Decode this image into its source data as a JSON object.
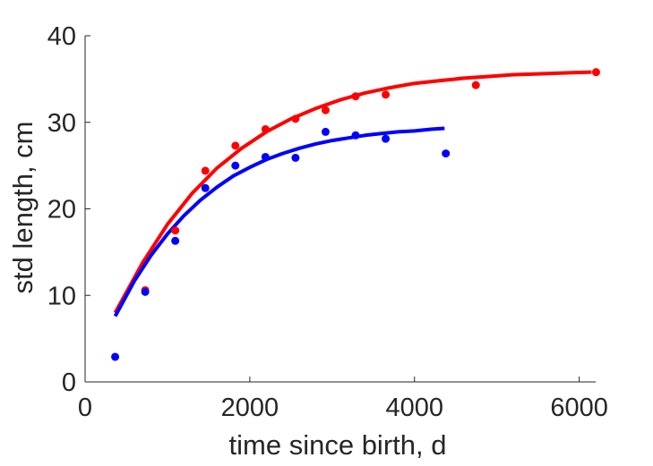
{
  "chart_data": {
    "type": "scatter",
    "title": "",
    "xlabel": "time since birth, d",
    "ylabel": "std length, cm",
    "xlim": [
      0,
      6200
    ],
    "ylim": [
      0,
      40
    ],
    "x_ticks": [
      0,
      2000,
      4000,
      6000
    ],
    "y_ticks": [
      0,
      10,
      20,
      30,
      40
    ],
    "x_tick_labels": [
      "0",
      "2000",
      "4000",
      "6000"
    ],
    "y_tick_labels": [
      "0",
      "10",
      "20",
      "30",
      "40"
    ],
    "grid": false,
    "legend": "none",
    "series": [
      {
        "color": "#ff0000",
        "points": [
          {
            "x": 730,
            "y": 10.6
          },
          {
            "x": 1095,
            "y": 17.5
          },
          {
            "x": 1460,
            "y": 24.4
          },
          {
            "x": 1825,
            "y": 27.3
          },
          {
            "x": 2190,
            "y": 29.2
          },
          {
            "x": 2555,
            "y": 30.4
          },
          {
            "x": 2920,
            "y": 31.4
          },
          {
            "x": 3285,
            "y": 33.0
          },
          {
            "x": 3650,
            "y": 33.2
          },
          {
            "x": 4745,
            "y": 34.3
          },
          {
            "x": 6205,
            "y": 35.8
          }
        ],
        "fit_curve": {
          "x": [
            365,
            700,
            1000,
            1300,
            1600,
            1900,
            2200,
            2500,
            2800,
            3100,
            3400,
            3700,
            4000,
            4300,
            4600,
            4900,
            5200,
            5500,
            5800,
            6150
          ],
          "y": [
            8.0,
            13.8,
            18.2,
            21.8,
            24.7,
            27.0,
            28.9,
            30.4,
            31.6,
            32.6,
            33.4,
            34.0,
            34.5,
            34.8,
            35.1,
            35.3,
            35.5,
            35.6,
            35.7,
            35.8
          ]
        }
      },
      {
        "color": "#0000ff",
        "points": [
          {
            "x": 365,
            "y": 2.9
          },
          {
            "x": 730,
            "y": 10.4
          },
          {
            "x": 1095,
            "y": 16.3
          },
          {
            "x": 1460,
            "y": 22.4
          },
          {
            "x": 1825,
            "y": 25.0
          },
          {
            "x": 2190,
            "y": 26.0
          },
          {
            "x": 2555,
            "y": 25.9
          },
          {
            "x": 2920,
            "y": 28.9
          },
          {
            "x": 3285,
            "y": 28.5
          },
          {
            "x": 3650,
            "y": 28.1
          },
          {
            "x": 4380,
            "y": 26.4
          }
        ],
        "fit_curve": {
          "x": [
            365,
            600,
            800,
            1000,
            1200,
            1400,
            1600,
            1800,
            2000,
            2200,
            2400,
            2600,
            2800,
            3000,
            3200,
            3400,
            3600,
            3800,
            4000,
            4200,
            4365
          ],
          "y": [
            7.6,
            11.7,
            14.6,
            17.1,
            19.2,
            21.0,
            22.5,
            23.8,
            24.8,
            25.7,
            26.4,
            27.0,
            27.5,
            27.9,
            28.2,
            28.5,
            28.7,
            28.9,
            29.0,
            29.2,
            29.3
          ]
        }
      }
    ]
  }
}
